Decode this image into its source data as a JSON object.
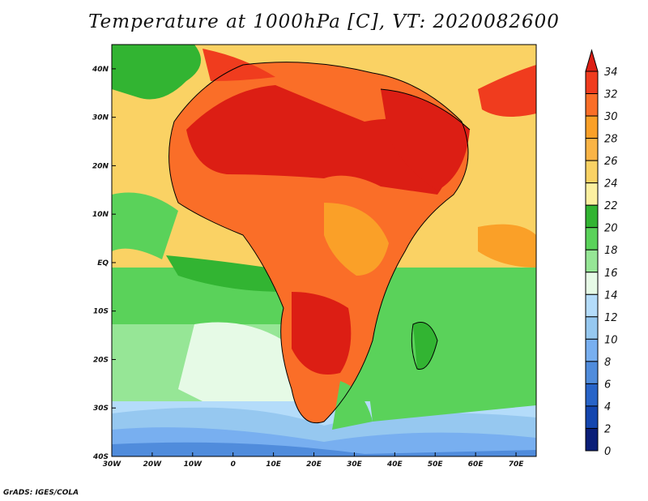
{
  "title": "Temperature at 1000hPa [C], VT: 2020082600",
  "footer": "GrADS: IGES/COLA",
  "map": {
    "lon_range": [
      -30,
      75
    ],
    "lat_range": [
      -40,
      45
    ],
    "lon_ticks": [
      {
        "value": -30,
        "label": "30W"
      },
      {
        "value": -20,
        "label": "20W"
      },
      {
        "value": -10,
        "label": "10W"
      },
      {
        "value": 0,
        "label": "0"
      },
      {
        "value": 10,
        "label": "10E"
      },
      {
        "value": 20,
        "label": "20E"
      },
      {
        "value": 30,
        "label": "30E"
      },
      {
        "value": 40,
        "label": "40E"
      },
      {
        "value": 50,
        "label": "50E"
      },
      {
        "value": 60,
        "label": "60E"
      },
      {
        "value": 70,
        "label": "70E"
      }
    ],
    "lat_ticks": [
      {
        "value": 40,
        "label": "40N"
      },
      {
        "value": 30,
        "label": "30N"
      },
      {
        "value": 20,
        "label": "20N"
      },
      {
        "value": 10,
        "label": "10N"
      },
      {
        "value": 0,
        "label": "EQ"
      },
      {
        "value": -10,
        "label": "10S"
      },
      {
        "value": -20,
        "label": "20S"
      },
      {
        "value": -30,
        "label": "30S"
      },
      {
        "value": -40,
        "label": "40S"
      }
    ]
  },
  "colorbar": {
    "labels": [
      "34",
      "32",
      "30",
      "28",
      "26",
      "24",
      "22",
      "20",
      "18",
      "16",
      "14",
      "12",
      "10",
      "8",
      "6",
      "4",
      "2",
      "0"
    ],
    "colors": [
      "#dc1e14",
      "#f03c1e",
      "#fa6e28",
      "#faa028",
      "#fab446",
      "#fad264",
      "#fcf0a0",
      "#32b432",
      "#5ad25a",
      "#96e696",
      "#e6fae6",
      "#b4dcfa",
      "#96c8f0",
      "#78aff0",
      "#508cdc",
      "#2864c8",
      "#1446af",
      "#0a1e78",
      "#e6e6fa"
    ]
  }
}
